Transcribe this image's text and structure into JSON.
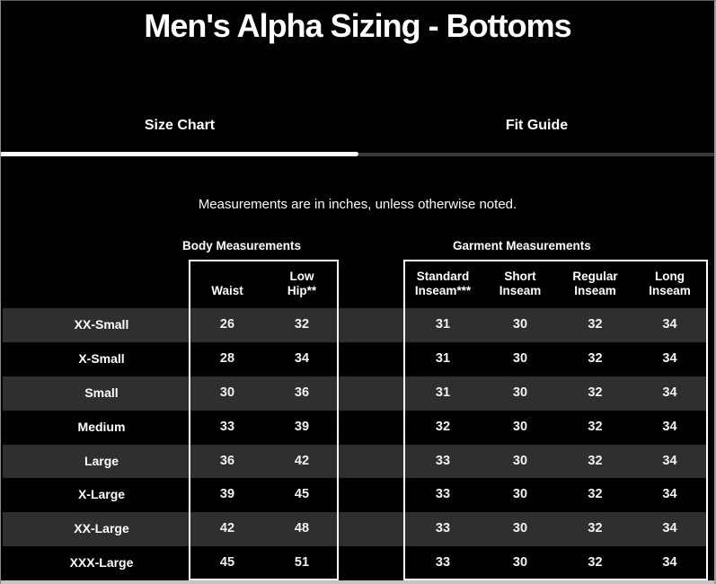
{
  "page": {
    "title": "Men's Alpha Sizing - Bottoms",
    "note": "Measurements are in inches, unless otherwise noted."
  },
  "tabs": [
    {
      "label": "Size Chart",
      "active": true
    },
    {
      "label": "Fit Guide",
      "active": false
    }
  ],
  "table": {
    "groups": [
      {
        "label": "Body Measurements",
        "columns": [
          "Waist",
          "Low Hip**"
        ]
      },
      {
        "label": "Garment Measurements",
        "columns": [
          "Standard Inseam***",
          "Short Inseam",
          "Regular Inseam",
          "Long Inseam"
        ]
      }
    ],
    "rows": [
      {
        "size": "XX-Small",
        "body": [
          "26",
          "32"
        ],
        "garment": [
          "31",
          "30",
          "32",
          "34"
        ]
      },
      {
        "size": "X-Small",
        "body": [
          "28",
          "34"
        ],
        "garment": [
          "31",
          "30",
          "32",
          "34"
        ]
      },
      {
        "size": "Small",
        "body": [
          "30",
          "36"
        ],
        "garment": [
          "31",
          "30",
          "32",
          "34"
        ]
      },
      {
        "size": "Medium",
        "body": [
          "33",
          "39"
        ],
        "garment": [
          "32",
          "30",
          "32",
          "34"
        ]
      },
      {
        "size": "Large",
        "body": [
          "36",
          "42"
        ],
        "garment": [
          "33",
          "30",
          "32",
          "34"
        ]
      },
      {
        "size": "X-Large",
        "body": [
          "39",
          "45"
        ],
        "garment": [
          "33",
          "30",
          "32",
          "34"
        ]
      },
      {
        "size": "XX-Large",
        "body": [
          "42",
          "48"
        ],
        "garment": [
          "33",
          "30",
          "32",
          "34"
        ]
      },
      {
        "size": "XXX-Large",
        "body": [
          "45",
          "51"
        ],
        "garment": [
          "33",
          "30",
          "32",
          "34"
        ]
      }
    ]
  },
  "colors": {
    "background": "#000000",
    "stripe": "#2f2f2f",
    "active_tab_underline": "#ffffff",
    "inactive_tab_underline": "#3a3a3a",
    "table_border": "#ffffff",
    "text": "#ffffff",
    "bottom_edge": "#c4c4c4"
  }
}
